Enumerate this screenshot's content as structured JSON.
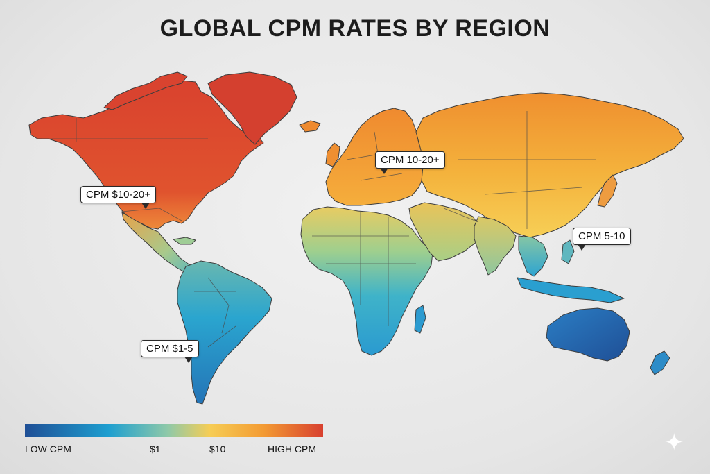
{
  "title": "GLOBAL CPM RATES BY REGION",
  "callouts": {
    "north_america": "CPM $10-20+",
    "europe": "CPM 10-20+",
    "asia_pacific": "CPM 5-10",
    "south_america": "CPM $1-5"
  },
  "legend": {
    "low": "LOW CPM",
    "mid1": "$1",
    "mid2": "$10",
    "high": "HIGH CPM"
  },
  "colors": {
    "high": "#d8402f",
    "upper_mid": "#f39b33",
    "mid": "#f6cd55",
    "lower_mid": "#8fc9a8",
    "low": "#1e9fd0",
    "lowest": "#1f4f96"
  }
}
